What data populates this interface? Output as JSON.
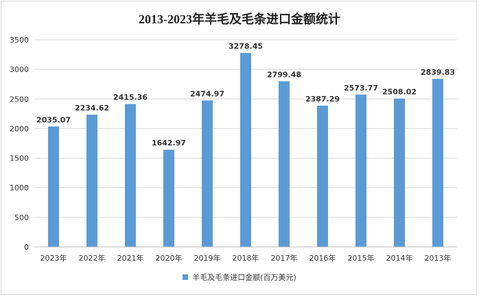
{
  "chart_data": {
    "type": "bar",
    "title": "2013-2023年羊毛及毛条进口金额统计",
    "categories": [
      "2023年",
      "2022年",
      "2021年",
      "2020年",
      "2019年",
      "2018年",
      "2017年",
      "2016年",
      "2015年",
      "2014年",
      "2013年"
    ],
    "series": [
      {
        "name": "羊毛及毛条进口金额(百万美元)",
        "values": [
          2035.07,
          2234.62,
          2415.36,
          1642.97,
          2474.97,
          3278.45,
          2799.48,
          2387.29,
          2573.77,
          2508.02,
          2839.83
        ],
        "labels": [
          "2035.07",
          "2234.62",
          "2415.36",
          "1642.97",
          "2474.97",
          "3278.45",
          "2799.48",
          "2387.29",
          "2573.77",
          "2508.02",
          "2839.83"
        ]
      }
    ],
    "ylim": [
      0,
      3500
    ],
    "yticks": [
      0,
      500,
      1000,
      1500,
      2000,
      2500,
      3000,
      3500
    ],
    "grid": true,
    "legend_position": "bottom",
    "colors": {
      "bar": "#5b9bd5",
      "grid": "#d9d9d9",
      "axis": "#bfbfbf"
    }
  }
}
